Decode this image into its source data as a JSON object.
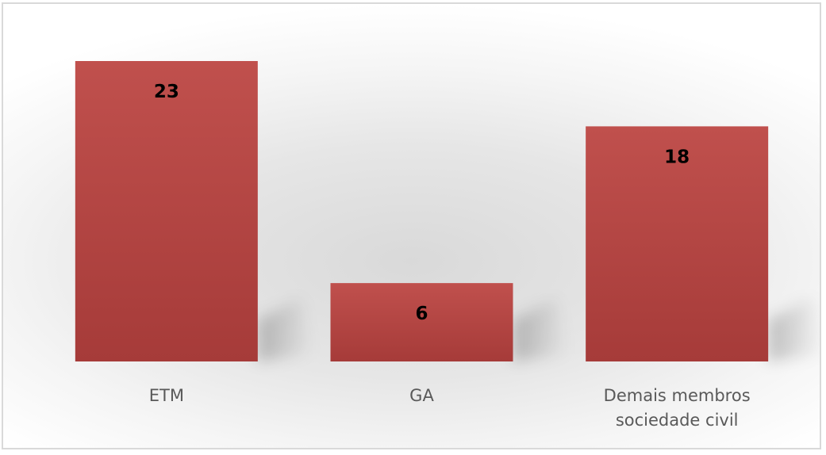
{
  "chart_data": {
    "type": "bar",
    "categories": [
      [
        "ETM"
      ],
      [
        "GA"
      ],
      [
        "Demais membros",
        "sociedade civil"
      ]
    ],
    "values": [
      23,
      6,
      18
    ],
    "data_labels": [
      "23",
      "6",
      "18"
    ],
    "title": "",
    "xlabel": "",
    "ylabel": "",
    "ylim": [
      0,
      23
    ],
    "grid": false,
    "legend": "none",
    "bar_color_top": "#c0504d",
    "bar_color_bottom": "#a83c3a",
    "data_label_color": "#000000",
    "category_label_color": "#595959"
  }
}
